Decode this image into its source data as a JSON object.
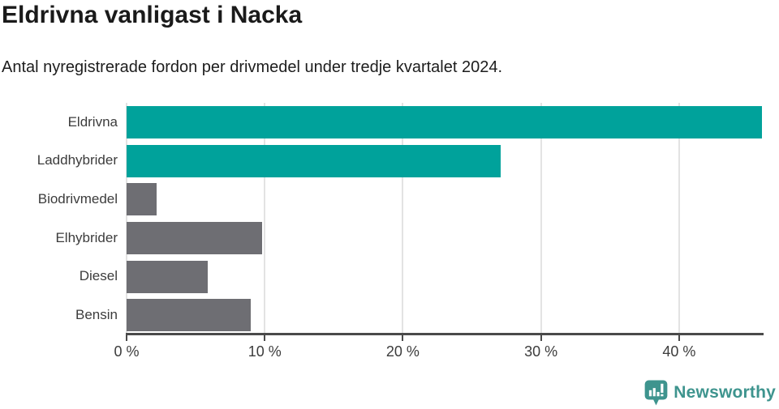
{
  "header": {
    "title": "Eldrivna vanligast i Nacka",
    "subtitle": "Antal nyregistrerade fordon per drivmedel under tredje kvartalet 2024."
  },
  "chart_data": {
    "type": "bar",
    "orientation": "horizontal",
    "title": "Eldrivna vanligast i Nacka",
    "subtitle": "Antal nyregistrerade fordon per drivmedel under tredje kvartalet 2024.",
    "categories": [
      "Eldrivna",
      "Laddhybrider",
      "Biodrivmedel",
      "Elhybrider",
      "Diesel",
      "Bensin"
    ],
    "values": [
      46,
      27.1,
      2.2,
      9.8,
      5.9,
      9
    ],
    "unit": "%",
    "xlabel": "",
    "ylabel": "",
    "xlim": [
      0,
      46
    ],
    "x_ticks": [
      0,
      10,
      20,
      30,
      40
    ],
    "x_tick_labels": [
      "0 %",
      "10 %",
      "20 %",
      "30 %",
      "40 %"
    ],
    "grid": true,
    "legend": "none",
    "bar_colors": [
      "#00A29B",
      "#00A29B",
      "#6E6E73",
      "#6E6E73",
      "#6E6E73",
      "#6E6E73"
    ],
    "highlight_color": "#00A29B",
    "default_color": "#6E6E73",
    "gridline_color": "#e3e3e3",
    "axis_color": "#4a4a4a"
  },
  "footer": {
    "brand": "Newsworthy",
    "brand_color": "#3E948E"
  }
}
